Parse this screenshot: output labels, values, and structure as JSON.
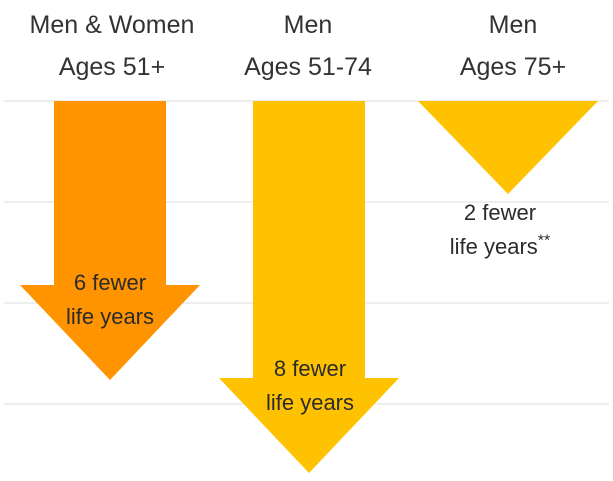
{
  "chart_data": {
    "type": "bar",
    "orientation": "downward-arrows",
    "grid": true,
    "categories": [
      {
        "line1": "Men & Women",
        "line2": "Ages 51+"
      },
      {
        "line1": "Men",
        "line2": "Ages 51-74"
      },
      {
        "line1": "Men",
        "line2": "Ages 75+"
      }
    ],
    "values": [
      6,
      8,
      2
    ],
    "value_labels": [
      {
        "line1": "6 fewer",
        "line2": "life years",
        "note": ""
      },
      {
        "line1": "8 fewer",
        "line2": "life years",
        "note": ""
      },
      {
        "line1": "2 fewer",
        "line2": "life years",
        "note": "**"
      }
    ],
    "colors": [
      "#FF9400",
      "#FFC200",
      "#FFC200"
    ],
    "gridline_color": "#dddddd"
  }
}
